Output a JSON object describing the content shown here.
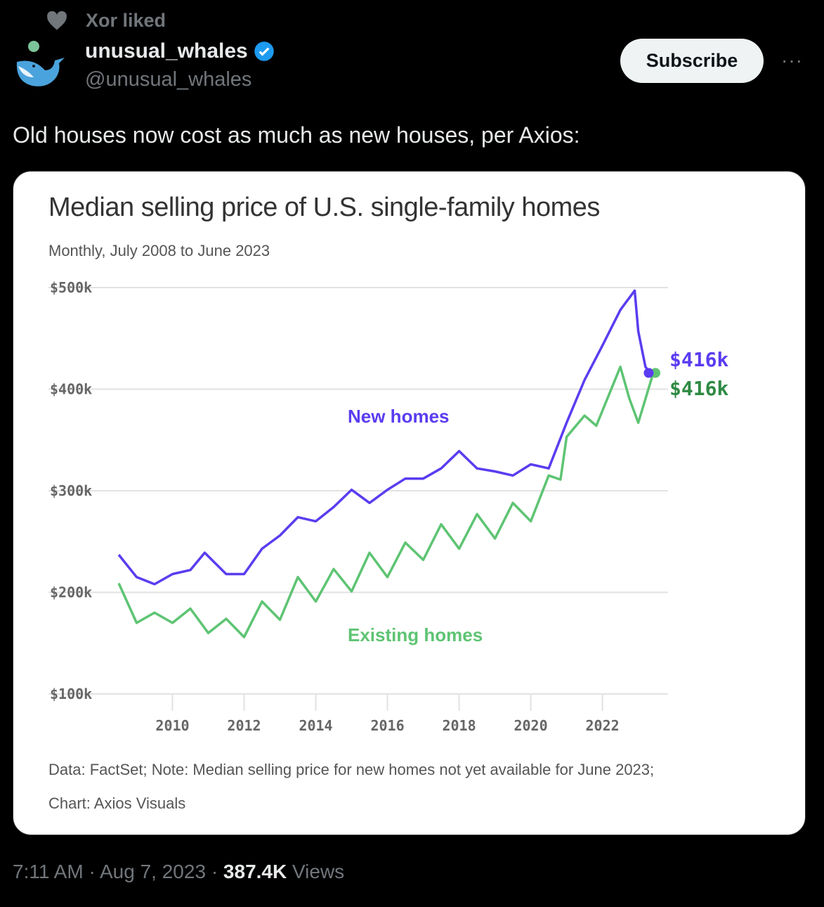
{
  "social_context": {
    "label": "Xor liked",
    "icon": "heart-icon"
  },
  "author": {
    "name": "unusual_whales",
    "handle": "@unusual_whales",
    "verified": true
  },
  "subscribe_label": "Subscribe",
  "more_label": "···",
  "tweet_text": "Old houses now cost as much as new houses, per Axios:",
  "footer": {
    "time": "7:11 AM",
    "date": "Aug 7, 2023",
    "views_count": "387.4K",
    "views_label": "Views",
    "separator": "·"
  },
  "colors": {
    "new": "#5b3cf0",
    "existing": "#5ec473",
    "existing_label_dark": "#2e8a43"
  },
  "chart_data": {
    "type": "line",
    "title": "Median selling price of U.S. single-family homes",
    "subtitle": "Monthly, July 2008 to June 2023",
    "note": "Data: FactSet; Note: Median selling price for new homes not yet available for June 2023;",
    "credit": "Chart: Axios Visuals",
    "ylim": [
      100,
      500
    ],
    "xlim": [
      2008.5,
      2023.42
    ],
    "yticks": [
      {
        "v": 500,
        "label": "$500k"
      },
      {
        "v": 400,
        "label": "$400k"
      },
      {
        "v": 300,
        "label": "$300k"
      },
      {
        "v": 200,
        "label": "$200k"
      },
      {
        "v": 100,
        "label": "$100k"
      }
    ],
    "xticks": [
      {
        "v": 2010,
        "label": "2010"
      },
      {
        "v": 2012,
        "label": "2012"
      },
      {
        "v": 2014,
        "label": "2014"
      },
      {
        "v": 2016,
        "label": "2016"
      },
      {
        "v": 2018,
        "label": "2018"
      },
      {
        "v": 2020,
        "label": "2020"
      },
      {
        "v": 2022,
        "label": "2022"
      }
    ],
    "series": [
      {
        "name": "New homes",
        "end_label": "$416k",
        "x": [
          2008.5,
          2009,
          2009.5,
          2010,
          2010.5,
          2010.9,
          2011.5,
          2012,
          2012.5,
          2013,
          2013.5,
          2014,
          2014.5,
          2015,
          2015.5,
          2016,
          2016.5,
          2017,
          2017.5,
          2018,
          2018.5,
          2019,
          2019.5,
          2020,
          2020.5,
          2021,
          2021.5,
          2022,
          2022.5,
          2022.9,
          2023,
          2023.2,
          2023.33
        ],
        "values": [
          237,
          215,
          208,
          218,
          222,
          239,
          218,
          218,
          243,
          256,
          274,
          270,
          284,
          301,
          288,
          301,
          312,
          312,
          322,
          339,
          322,
          319,
          315,
          326,
          322,
          367,
          409,
          443,
          478,
          497,
          457,
          422,
          416
        ]
      },
      {
        "name": "Existing homes",
        "end_label": "$416k",
        "x": [
          2008.5,
          2009,
          2009.5,
          2010,
          2010.5,
          2011,
          2011.5,
          2012,
          2012.5,
          2013,
          2013.5,
          2014,
          2014.5,
          2015,
          2015.5,
          2016,
          2016.5,
          2017,
          2017.5,
          2018,
          2018.5,
          2019,
          2019.5,
          2020,
          2020.5,
          2020.83,
          2021,
          2021.5,
          2021.83,
          2022.5,
          2022.75,
          2023,
          2023.42
        ],
        "values": [
          209,
          170,
          180,
          170,
          184,
          160,
          174,
          156,
          191,
          173,
          215,
          191,
          223,
          201,
          239,
          215,
          249,
          232,
          267,
          243,
          277,
          253,
          288,
          270,
          315,
          311,
          353,
          374,
          364,
          422,
          391,
          367,
          416
        ]
      }
    ]
  }
}
